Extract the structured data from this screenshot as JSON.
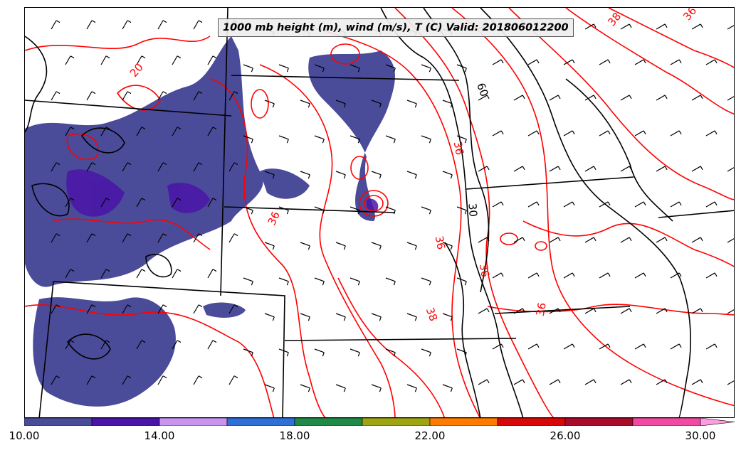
{
  "map": {
    "title": "1000 mb height (m), wind (m/s), T (C) Valid: 201806012200",
    "contour_labels": [
      "20",
      "60",
      "36",
      "30",
      "36",
      "36",
      "36",
      "38",
      "36",
      "38",
      "36"
    ]
  },
  "colorbar": {
    "ticks": [
      "10.00",
      "14.00",
      "18.00",
      "22.00",
      "26.00",
      "30.00"
    ],
    "colors": [
      "#4a4c9a",
      "#4b14a8",
      "#c994f0",
      "#2f6fd8",
      "#1f8a48",
      "#9ea412",
      "#ff7a00",
      "#d80808",
      "#a80c2a",
      "#f24aa4",
      "#ff9ce0"
    ]
  },
  "colors": {
    "temperature_contour": "#ff0000",
    "height_contour": "#000000",
    "precip_fill": "#4a4c9a",
    "precip_core": "#4b14a8"
  }
}
